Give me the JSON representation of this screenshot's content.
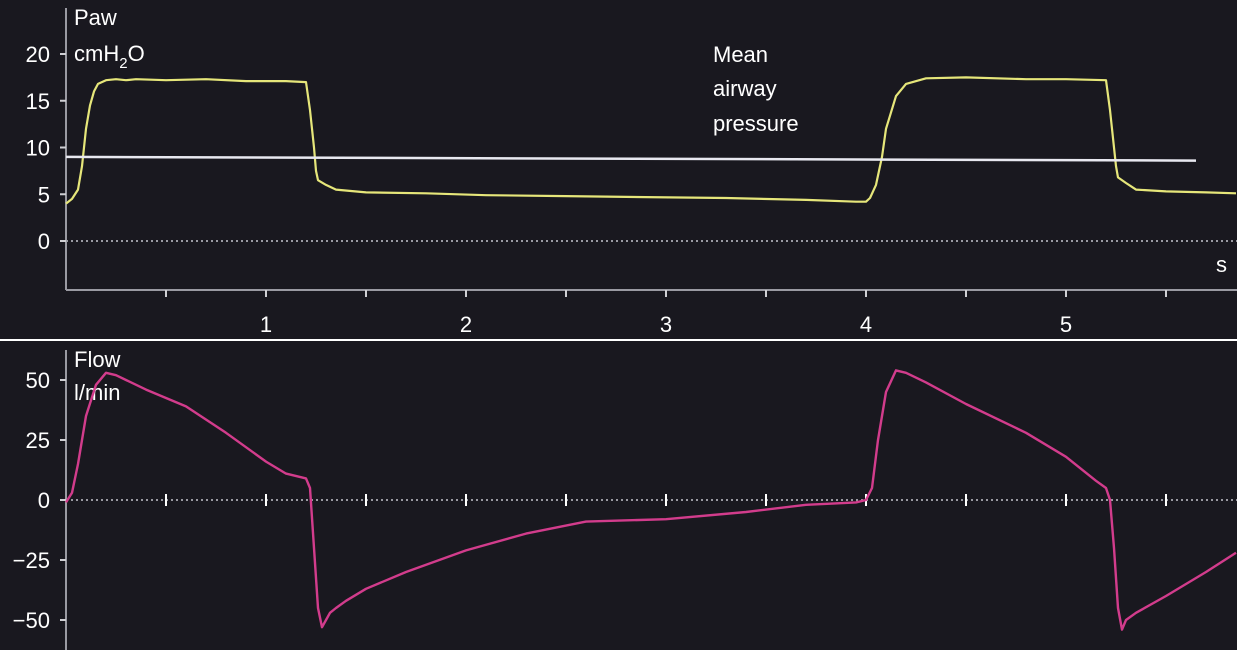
{
  "chart_data": [
    {
      "type": "line",
      "name": "pressure-panel",
      "ylabel_line1": "Paw",
      "ylabel_unit_base": "cmH",
      "ylabel_unit_sub": "2",
      "ylabel_unit_tail": "O",
      "xlabel": "s",
      "xlim": [
        0,
        5.85
      ],
      "ylim": [
        -10,
        25
      ],
      "yticks": [
        "20",
        "15",
        "10",
        "5",
        "0"
      ],
      "ytick_values": [
        20,
        15,
        10,
        5,
        0
      ],
      "xticks": [
        "1",
        "2",
        "3",
        "4",
        "5"
      ],
      "xtick_values": [
        1,
        2,
        3,
        4,
        5
      ],
      "zero_line": "dotted",
      "annotation": {
        "lines": [
          "Mean",
          "airway",
          "pressure"
        ],
        "x": 3.2,
        "y": 18.5
      },
      "series": [
        {
          "color": "#e6e67a",
          "x": [
            0,
            0.03,
            0.06,
            0.08,
            0.1,
            0.12,
            0.14,
            0.16,
            0.2,
            0.25,
            0.3,
            0.35,
            0.5,
            0.7,
            0.9,
            1.1,
            1.2,
            1.22,
            1.24,
            1.25,
            1.26,
            1.3,
            1.35,
            1.5,
            1.8,
            2.1,
            2.5,
            2.9,
            3.3,
            3.7,
            3.95,
            4.0,
            4.02,
            4.05,
            4.08,
            4.1,
            4.15,
            4.2,
            4.3,
            4.5,
            4.8,
            5.0,
            5.2,
            5.22,
            5.24,
            5.25,
            5.26,
            5.3,
            5.35,
            5.5,
            5.7,
            5.85
          ],
          "values": [
            4,
            4.5,
            5.5,
            8,
            12,
            14.5,
            16,
            16.8,
            17.2,
            17.3,
            17.2,
            17.3,
            17.2,
            17.3,
            17.1,
            17.1,
            17.0,
            14,
            10,
            7.5,
            6.5,
            6,
            5.5,
            5.2,
            5.1,
            4.9,
            4.8,
            4.7,
            4.6,
            4.4,
            4.2,
            4.2,
            4.6,
            6,
            9,
            12,
            15.5,
            16.8,
            17.4,
            17.5,
            17.3,
            17.3,
            17.2,
            14,
            10,
            8,
            6.8,
            6.2,
            5.5,
            5.3,
            5.2,
            5.1
          ]
        },
        {
          "color": "#e8e8f0",
          "x": [
            0,
            5.65
          ],
          "values": [
            9.0,
            8.6
          ]
        }
      ]
    },
    {
      "type": "line",
      "name": "flow-panel",
      "ylabel_line1": "Flow",
      "ylabel_line2": "l/min",
      "xlim": [
        0,
        5.85
      ],
      "ylim": [
        -55,
        60
      ],
      "yticks": [
        "50",
        "25",
        "0",
        "−25",
        "−50"
      ],
      "ytick_values": [
        50,
        25,
        0,
        -25,
        -50
      ],
      "tick_marks_on_zero": [
        0.5,
        1,
        1.5,
        2,
        2.5,
        3,
        3.5,
        4,
        4.5,
        5,
        5.5
      ],
      "zero_line": "dotted",
      "series": [
        {
          "color": "#d23c8c",
          "x": [
            0,
            0.03,
            0.06,
            0.1,
            0.15,
            0.2,
            0.25,
            0.3,
            0.4,
            0.6,
            0.8,
            1.0,
            1.1,
            1.2,
            1.22,
            1.24,
            1.26,
            1.28,
            1.3,
            1.32,
            1.35,
            1.4,
            1.5,
            1.7,
            2.0,
            2.3,
            2.6,
            3.0,
            3.4,
            3.7,
            3.95,
            4.0,
            4.03,
            4.06,
            4.1,
            4.15,
            4.2,
            4.3,
            4.5,
            4.8,
            5.0,
            5.15,
            5.2,
            5.22,
            5.24,
            5.26,
            5.28,
            5.3,
            5.35,
            5.5,
            5.7,
            5.85
          ],
          "values": [
            -1,
            3,
            15,
            35,
            48,
            53,
            52,
            50,
            46,
            39,
            28,
            16,
            11,
            9,
            5,
            -20,
            -45,
            -53,
            -50,
            -47,
            -45,
            -42,
            -37,
            -30,
            -21,
            -14,
            -9,
            -8,
            -5,
            -2,
            -1,
            0,
            5,
            25,
            45,
            54,
            53,
            49,
            40,
            28,
            18,
            8,
            5,
            0,
            -20,
            -45,
            -54,
            -50,
            -47,
            -40,
            -30,
            -22
          ]
        }
      ]
    }
  ]
}
